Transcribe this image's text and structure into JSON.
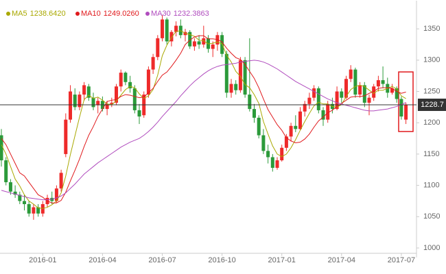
{
  "chart_data": {
    "type": "candlestick",
    "up_color": "#ee2a2a",
    "down_color": "#2b9a3a",
    "open": [
      1180,
      1140,
      1105,
      1090,
      1085,
      1075,
      1070,
      1055,
      1065,
      1055,
      1070,
      1080,
      1075,
      1095,
      1150,
      1205,
      1245,
      1225,
      1245,
      1258,
      1240,
      1228,
      1235,
      1222,
      1230,
      1232,
      1258,
      1280,
      1265,
      1255,
      1220,
      1212,
      1245,
      1285,
      1305,
      1335,
      1365,
      1330,
      1345,
      1355,
      1340,
      1345,
      1322,
      1330,
      1325,
      1335,
      1318,
      1325,
      1340,
      1310,
      1248,
      1262,
      1252,
      1300,
      1245,
      1222,
      1208,
      1180,
      1155,
      1145,
      1128,
      1140,
      1160,
      1178,
      1195,
      1190,
      1218,
      1230,
      1240,
      1255,
      1220,
      1205,
      1230,
      1222,
      1250,
      1240,
      1270,
      1285,
      1245,
      1260,
      1232,
      1240,
      1258,
      1268,
      1262,
      1248,
      1255,
      1238,
      1205
    ],
    "high": [
      1190,
      1145,
      1110,
      1100,
      1090,
      1085,
      1075,
      1070,
      1070,
      1075,
      1085,
      1090,
      1100,
      1125,
      1215,
      1260,
      1255,
      1250,
      1265,
      1262,
      1248,
      1240,
      1242,
      1235,
      1240,
      1262,
      1285,
      1282,
      1275,
      1260,
      1230,
      1250,
      1290,
      1310,
      1340,
      1372,
      1368,
      1348,
      1362,
      1365,
      1350,
      1348,
      1335,
      1340,
      1355,
      1340,
      1330,
      1345,
      1345,
      1315,
      1270,
      1268,
      1305,
      1305,
      1335,
      1230,
      1212,
      1190,
      1165,
      1150,
      1145,
      1165,
      1182,
      1200,
      1212,
      1225,
      1235,
      1248,
      1260,
      1258,
      1225,
      1235,
      1240,
      1258,
      1255,
      1275,
      1292,
      1288,
      1265,
      1265,
      1245,
      1262,
      1275,
      1290,
      1272,
      1262,
      1258,
      1242,
      1232
    ],
    "low": [
      1130,
      1100,
      1085,
      1080,
      1070,
      1060,
      1050,
      1045,
      1050,
      1050,
      1065,
      1070,
      1072,
      1090,
      1145,
      1200,
      1220,
      1220,
      1235,
      1235,
      1220,
      1215,
      1218,
      1212,
      1225,
      1228,
      1250,
      1260,
      1248,
      1215,
      1198,
      1208,
      1240,
      1278,
      1300,
      1330,
      1325,
      1322,
      1338,
      1335,
      1330,
      1318,
      1315,
      1318,
      1320,
      1312,
      1305,
      1315,
      1305,
      1240,
      1240,
      1245,
      1248,
      1240,
      1218,
      1200,
      1175,
      1150,
      1135,
      1122,
      1125,
      1138,
      1155,
      1170,
      1185,
      1188,
      1210,
      1222,
      1235,
      1215,
      1195,
      1200,
      1215,
      1220,
      1232,
      1238,
      1265,
      1240,
      1240,
      1225,
      1212,
      1235,
      1250,
      1255,
      1240,
      1245,
      1232,
      1205,
      1198
    ],
    "close": [
      1140,
      1105,
      1090,
      1085,
      1075,
      1070,
      1055,
      1065,
      1055,
      1070,
      1080,
      1075,
      1095,
      1120,
      1205,
      1250,
      1225,
      1245,
      1260,
      1240,
      1225,
      1235,
      1222,
      1230,
      1232,
      1258,
      1280,
      1265,
      1255,
      1220,
      1210,
      1245,
      1285,
      1305,
      1335,
      1365,
      1330,
      1345,
      1355,
      1340,
      1345,
      1322,
      1330,
      1325,
      1335,
      1318,
      1325,
      1340,
      1310,
      1248,
      1262,
      1252,
      1300,
      1245,
      1222,
      1208,
      1180,
      1155,
      1145,
      1128,
      1140,
      1160,
      1178,
      1195,
      1190,
      1218,
      1230,
      1240,
      1255,
      1220,
      1205,
      1230,
      1222,
      1250,
      1240,
      1270,
      1285,
      1245,
      1260,
      1232,
      1240,
      1258,
      1268,
      1262,
      1248,
      1255,
      1238,
      1210,
      1228.7
    ],
    "series": [
      {
        "name": "MA5",
        "value_label": "1238.6420",
        "color": "#a9a800",
        "values": [
          1165,
          1150,
          1130,
          1110,
          1099,
          1085,
          1075,
          1070,
          1064,
          1063,
          1065,
          1069,
          1075,
          1088,
          1115,
          1149,
          1179,
          1209,
          1237,
          1244,
          1239,
          1241,
          1236,
          1230,
          1229,
          1235,
          1244,
          1253,
          1258,
          1256,
          1246,
          1239,
          1243,
          1253,
          1276,
          1307,
          1324,
          1336,
          1346,
          1347,
          1343,
          1341,
          1338,
          1332,
          1331,
          1326,
          1327,
          1329,
          1326,
          1308,
          1297,
          1282,
          1274,
          1261,
          1256,
          1245,
          1231,
          1202,
          1182,
          1163,
          1150,
          1146,
          1150,
          1160,
          1173,
          1188,
          1202,
          1215,
          1227,
          1233,
          1230,
          1230,
          1226,
          1225,
          1229,
          1242,
          1253,
          1258,
          1260,
          1258,
          1252,
          1247,
          1252,
          1252,
          1255,
          1258,
          1254,
          1243,
          1238.642
        ]
      },
      {
        "name": "MA10",
        "value_label": "1249.0260",
        "color": "#e0191c",
        "values": [
          1175,
          1165,
          1150,
          1135,
          1120,
          1115,
          1105,
          1095,
          1085,
          1081,
          1075,
          1072,
          1072,
          1076,
          1089,
          1107,
          1124,
          1142,
          1162,
          1180,
          1194,
          1210,
          1222,
          1234,
          1236,
          1237,
          1242,
          1245,
          1244,
          1242,
          1240,
          1241,
          1248,
          1255,
          1266,
          1276,
          1281,
          1290,
          1300,
          1311,
          1325,
          1332,
          1337,
          1339,
          1339,
          1334,
          1334,
          1333,
          1329,
          1319,
          1311,
          1304,
          1301,
          1293,
          1282,
          1271,
          1256,
          1238,
          1221,
          1209,
          1197,
          1188,
          1176,
          1171,
          1168,
          1169,
          1174,
          1182,
          1193,
          1203,
          1209,
          1216,
          1220,
          1226,
          1231,
          1236,
          1241,
          1242,
          1242,
          1243,
          1247,
          1250,
          1255,
          1256,
          1256,
          1255,
          1250,
          1247,
          1249.026
        ]
      },
      {
        "name": "MA30",
        "value_label": "1232.3863",
        "color": "#b04cbe",
        "values": [
          1092,
          1090,
          1088,
          1086,
          1084,
          1082,
          1080,
          1079,
          1078,
          1077,
          1077,
          1078,
          1080,
          1083,
          1088,
          1095,
          1102,
          1110,
          1118,
          1124,
          1130,
          1136,
          1141,
          1146,
          1151,
          1156,
          1161,
          1165,
          1169,
          1172,
          1175,
          1180,
          1186,
          1193,
          1201,
          1210,
          1218,
          1226,
          1234,
          1243,
          1251,
          1259,
          1266,
          1272,
          1278,
          1283,
          1287,
          1290,
          1292,
          1293,
          1294,
          1295,
          1297,
          1298,
          1299,
          1300,
          1299,
          1297,
          1294,
          1290,
          1286,
          1281,
          1276,
          1271,
          1266,
          1262,
          1258,
          1254,
          1250,
          1246,
          1242,
          1238,
          1235,
          1232,
          1230,
          1228,
          1226,
          1224,
          1222,
          1220,
          1219,
          1219,
          1220,
          1221,
          1222,
          1224,
          1226,
          1229,
          1232.3863
        ]
      }
    ],
    "last_price": 1228.7,
    "xlim": [
      -0.3,
      90.3
    ],
    "xticks": [
      {
        "value": 9,
        "label": "2016-01"
      },
      {
        "value": 22,
        "label": "2016-04"
      },
      {
        "value": 35,
        "label": "2016-07"
      },
      {
        "value": 48,
        "label": "2016-10"
      },
      {
        "value": 61,
        "label": "2017-01"
      },
      {
        "value": 74,
        "label": "2017-04"
      },
      {
        "value": 87,
        "label": "2017-07"
      }
    ],
    "ylim": [
      985,
      1395
    ],
    "yticks": [
      1000,
      1050,
      1100,
      1150,
      1200,
      1250,
      1300,
      1350
    ],
    "grid": false
  }
}
